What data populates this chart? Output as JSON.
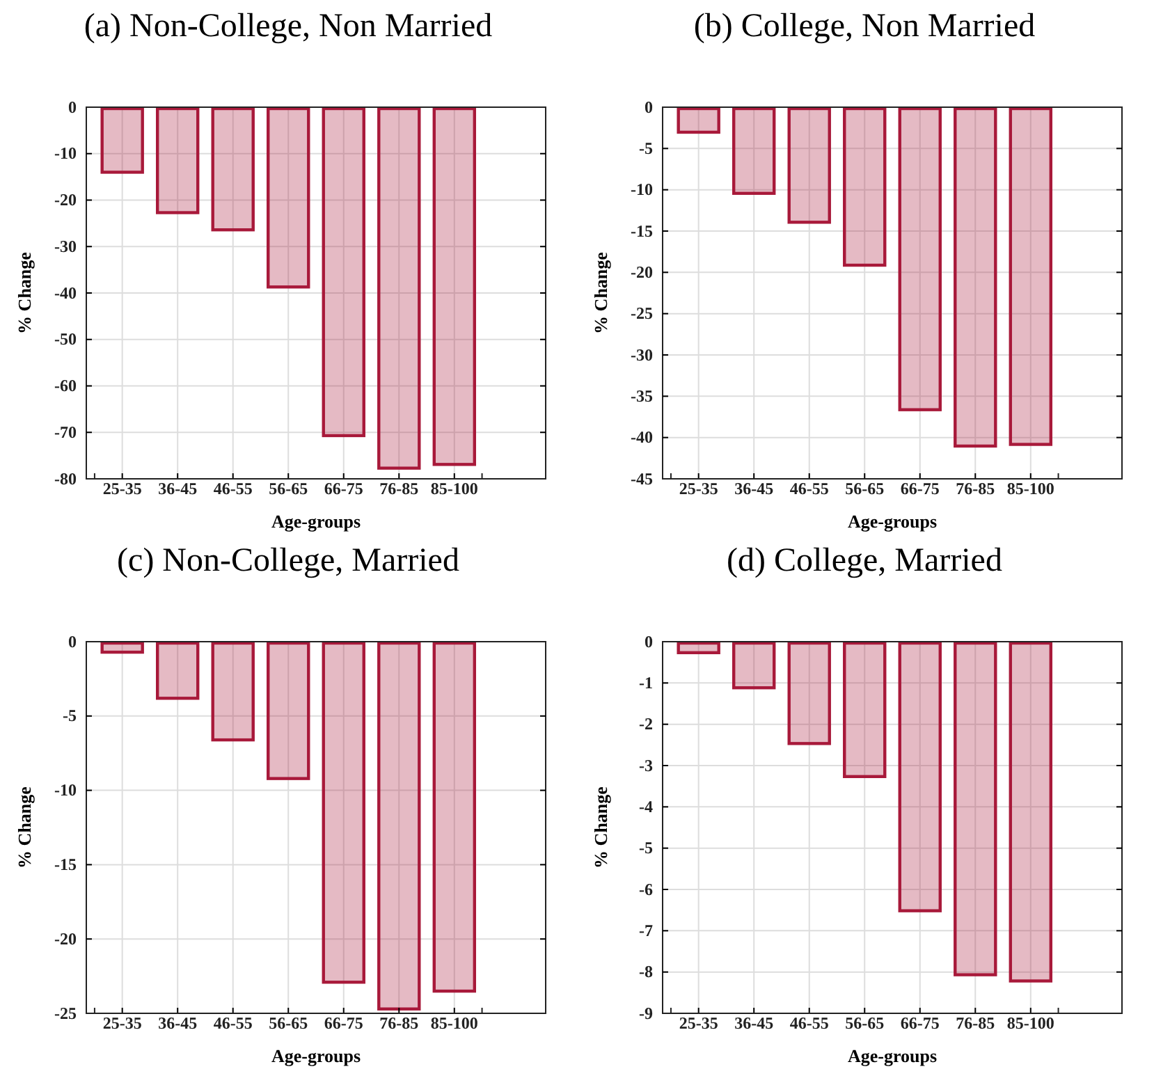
{
  "chart_data": [
    {
      "type": "bar",
      "title": "(a) Non-College, Non Married",
      "xlabel": "Age-groups",
      "ylabel": "% Change",
      "categories": [
        "25-35",
        "36-45",
        "46-55",
        "56-65",
        "66-75",
        "76-85",
        "85-100"
      ],
      "series": [
        {
          "color": "#a8193a",
          "values": [
            -14.3,
            -23,
            -26.7,
            -39,
            -71,
            -78,
            -77.2
          ]
        }
      ],
      "ylim": [
        -80,
        0
      ],
      "yticks": [
        -80,
        -70,
        -60,
        -50,
        -40,
        -30,
        -20,
        -10,
        0
      ],
      "grid": true
    },
    {
      "type": "bar",
      "title": "(b) College, Non Married",
      "xlabel": "Age-groups",
      "ylabel": "% Change",
      "categories": [
        "25-35",
        "36-45",
        "46-55",
        "56-65",
        "66-75",
        "76-85",
        "85-100"
      ],
      "series": [
        {
          "color": "#a8193a",
          "values": [
            -3.2,
            -10.6,
            -14.1,
            -19.3,
            -36.8,
            -41.2,
            -41
          ]
        }
      ],
      "ylim": [
        -45,
        0
      ],
      "yticks": [
        -45,
        -40,
        -35,
        -30,
        -25,
        -20,
        -15,
        -10,
        -5,
        0
      ],
      "grid": true
    },
    {
      "type": "bar",
      "title": "(c) Non-College, Married",
      "xlabel": "Age-groups",
      "ylabel": "% Change",
      "categories": [
        "25-35",
        "36-45",
        "46-55",
        "56-65",
        "66-75",
        "76-85",
        "85-100"
      ],
      "series": [
        {
          "color": "#a8193a",
          "values": [
            -0.8,
            -3.9,
            -6.7,
            -9.3,
            -23,
            -24.8,
            -23.6
          ]
        }
      ],
      "ylim": [
        -25,
        0
      ],
      "yticks": [
        -25,
        -20,
        -15,
        -10,
        -5,
        0
      ],
      "grid": true
    },
    {
      "type": "bar",
      "title": "(d) College, Married",
      "xlabel": "Age-groups",
      "ylabel": "% Change",
      "categories": [
        "25-35",
        "36-45",
        "46-55",
        "56-65",
        "66-75",
        "76-85",
        "85-100"
      ],
      "series": [
        {
          "color": "#a8193a",
          "values": [
            -0.3,
            -1.15,
            -2.5,
            -3.3,
            -6.55,
            -8.1,
            -8.25
          ]
        }
      ],
      "ylim": [
        -9,
        0
      ],
      "yticks": [
        -9,
        -8,
        -7,
        -6,
        -5,
        -4,
        -3,
        -2,
        -1,
        0
      ],
      "grid": true
    }
  ]
}
